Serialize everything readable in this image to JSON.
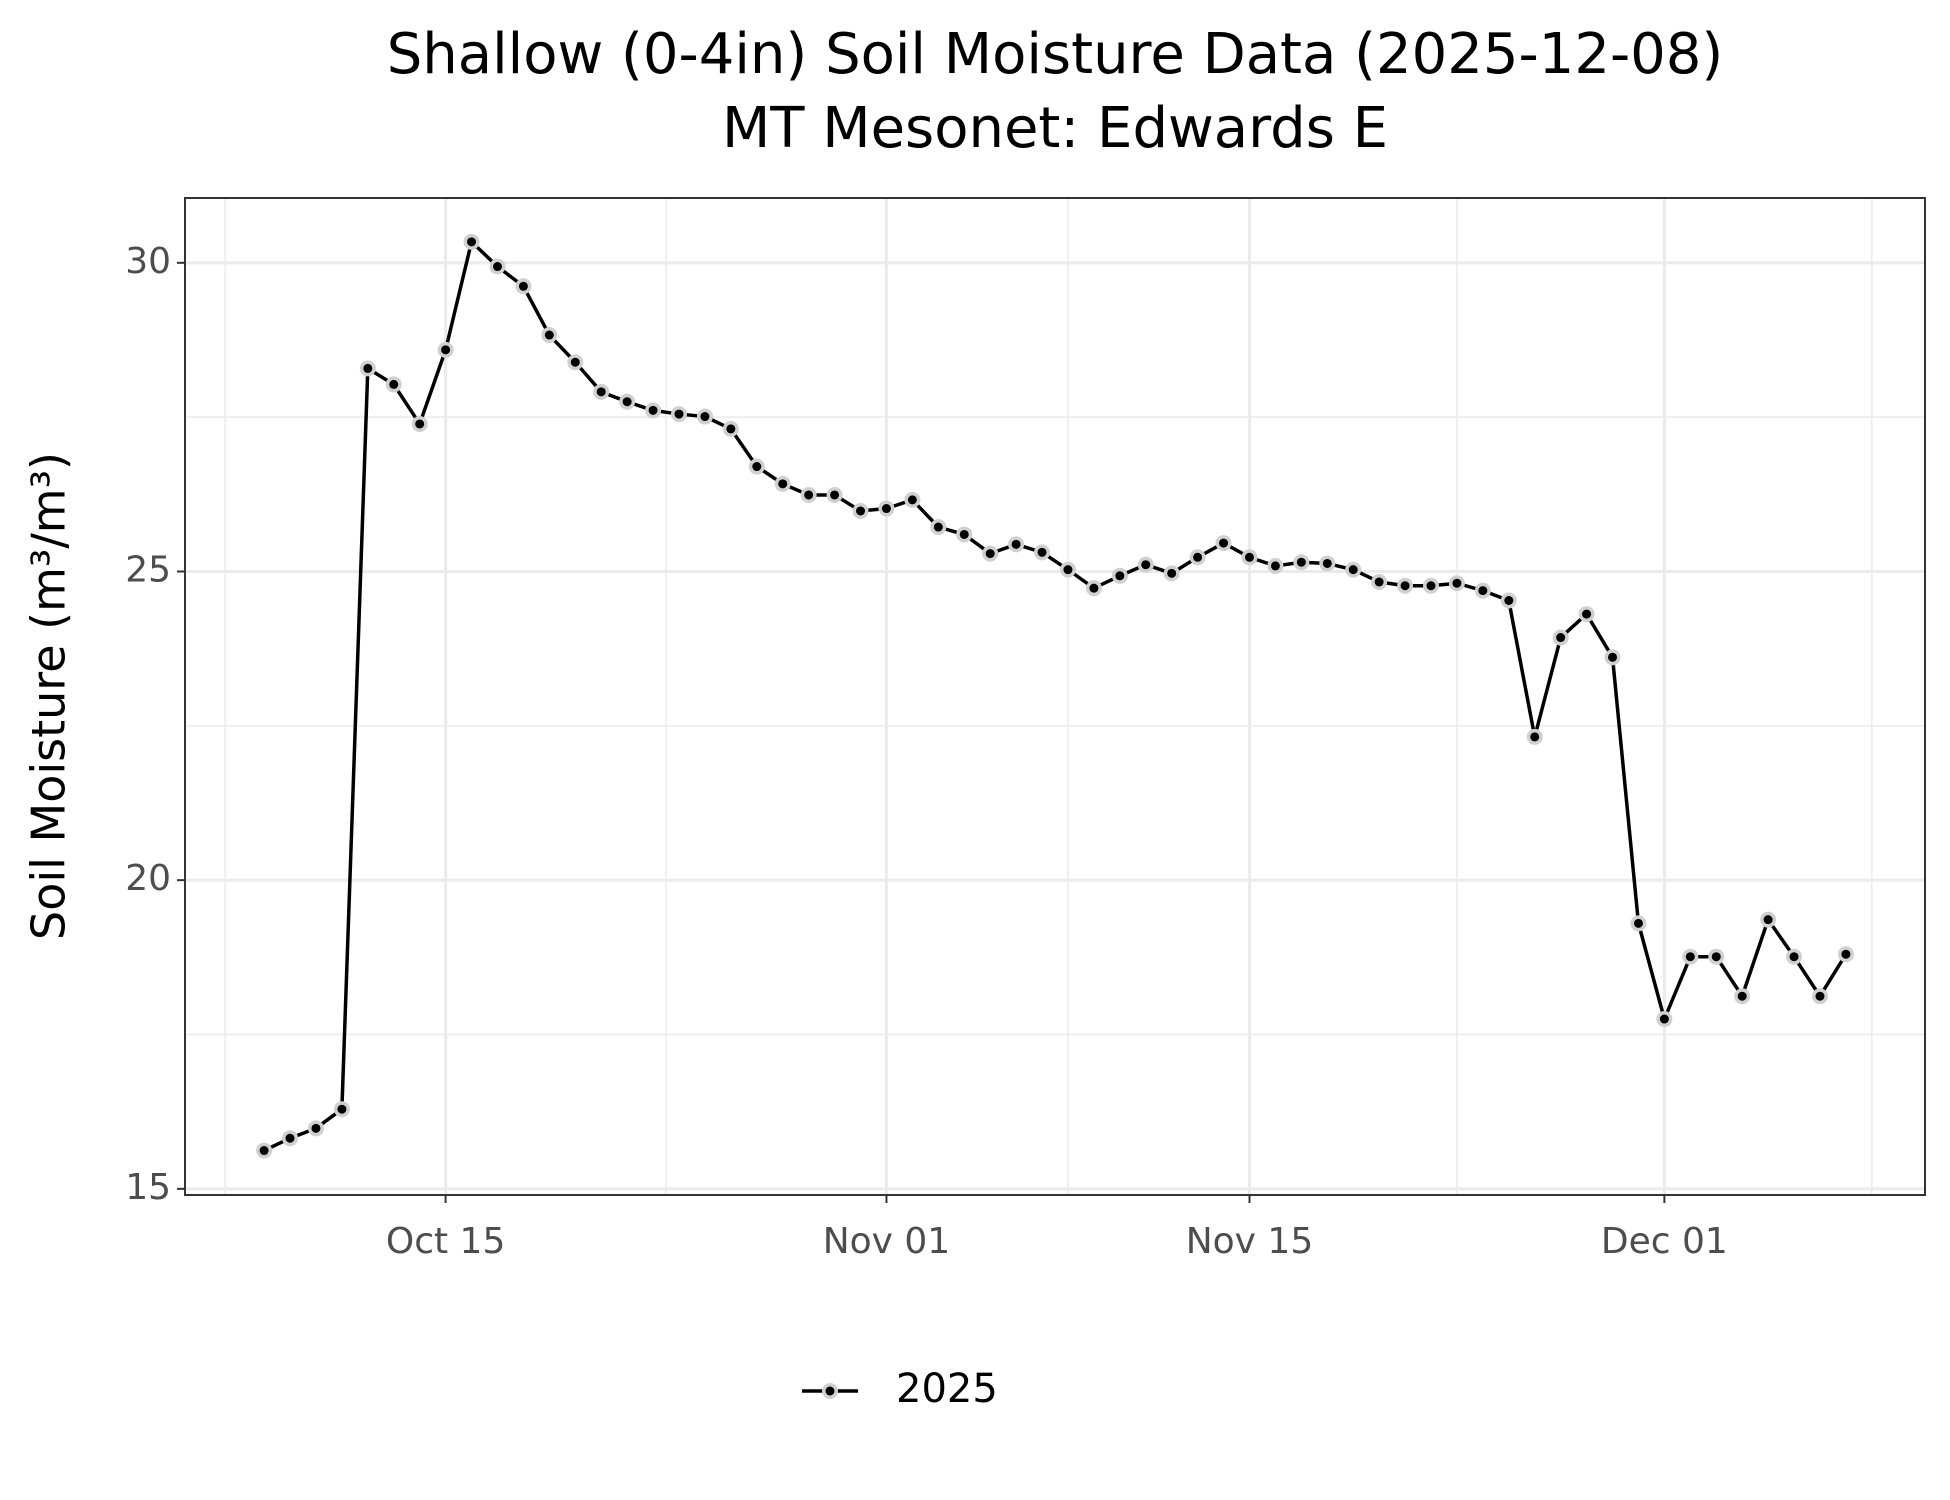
{
  "chart_data": {
    "type": "line",
    "title": "Shallow (0-4in) Soil Moisture Data (2025-12-08)",
    "subtitle": "MT Mesonet: Edwards E",
    "y_label": "Soil Moisture (m³/m³)",
    "x": [
      "Oct 08",
      "Oct 09",
      "Oct 10",
      "Oct 11",
      "Oct 12",
      "Oct 13",
      "Oct 14",
      "Oct 15",
      "Oct 16",
      "Oct 17",
      "Oct 18",
      "Oct 19",
      "Oct 20",
      "Oct 21",
      "Oct 22",
      "Oct 23",
      "Oct 24",
      "Oct 25",
      "Oct 26",
      "Oct 27",
      "Oct 28",
      "Oct 29",
      "Oct 30",
      "Oct 31",
      "Nov 01",
      "Nov 02",
      "Nov 03",
      "Nov 04",
      "Nov 05",
      "Nov 06",
      "Nov 07",
      "Nov 08",
      "Nov 09",
      "Nov 10",
      "Nov 11",
      "Nov 12",
      "Nov 13",
      "Nov 14",
      "Nov 15",
      "Nov 16",
      "Nov 17",
      "Nov 18",
      "Nov 19",
      "Nov 20",
      "Nov 21",
      "Nov 22",
      "Nov 23",
      "Nov 24",
      "Nov 25",
      "Nov 26",
      "Nov 27",
      "Nov 28",
      "Nov 29",
      "Nov 30",
      "Dec 01",
      "Dec 02",
      "Dec 03",
      "Dec 04",
      "Dec 05",
      "Dec 06",
      "Dec 07",
      "Dec 08"
    ],
    "series": [
      {
        "name": "2025",
        "color": "#000000",
        "values": [
          15.62,
          15.82,
          15.98,
          16.29,
          28.29,
          28.03,
          27.39,
          28.59,
          30.34,
          29.94,
          29.62,
          28.83,
          28.39,
          27.91,
          27.75,
          27.61,
          27.55,
          27.51,
          27.31,
          26.7,
          26.42,
          26.24,
          26.24,
          25.98,
          26.02,
          26.16,
          25.72,
          25.6,
          25.29,
          25.44,
          25.31,
          25.03,
          24.73,
          24.93,
          25.11,
          24.97,
          25.23,
          25.46,
          25.23,
          25.09,
          25.15,
          25.13,
          25.03,
          24.83,
          24.77,
          24.77,
          24.81,
          24.69,
          24.53,
          22.32,
          23.93,
          24.31,
          23.61,
          19.3,
          17.75,
          18.76,
          18.76,
          18.12,
          19.36,
          18.76,
          18.12,
          18.8
        ]
      }
    ],
    "xticks": [
      "Oct 15",
      "Nov 01",
      "Nov 15",
      "Dec 01"
    ],
    "ylim": [
      14.9,
      31.05
    ],
    "yticks": [
      15,
      20,
      25,
      30
    ],
    "grid": true,
    "legend": "bottom"
  }
}
